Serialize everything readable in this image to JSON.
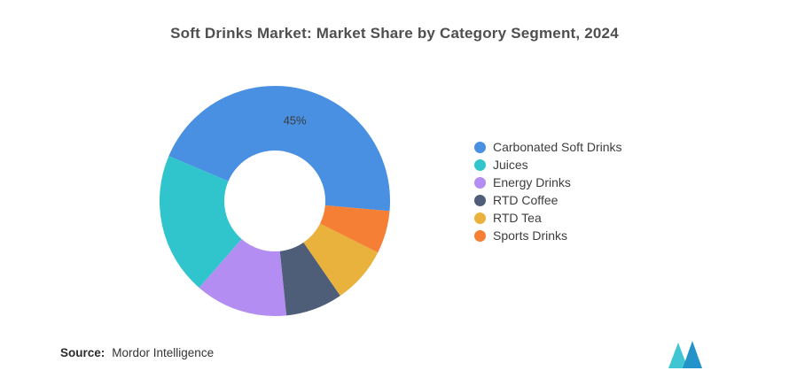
{
  "title": "Soft Drinks Market: Market Share by Category Segment, 2024",
  "source": {
    "label": "Source:",
    "value": "Mordor Intelligence"
  },
  "logo": {
    "name": "mordor-intelligence-logo",
    "teal_color": "#3fc6d2",
    "blue_color": "#2493c9"
  },
  "chart_data": {
    "type": "pie",
    "donut": true,
    "title": "Soft Drinks Market: Market Share by Category Segment, 2024",
    "legend_position": "right",
    "direction": "counterclockwise",
    "start_angle_deg": -5,
    "categories": [
      "Carbonated Soft Drinks",
      "Juices",
      "Energy Drinks",
      "RTD Coffee",
      "RTD Tea",
      "Sports Drinks"
    ],
    "values": [
      45,
      20,
      13,
      8,
      8,
      6
    ],
    "colors": [
      "#4a90e2",
      "#30c5cd",
      "#b38df2",
      "#4e5d78",
      "#e9b23c",
      "#f47f35"
    ],
    "data_labels": [
      "45%",
      "",
      "",
      "",
      "",
      ""
    ],
    "label_text_color": "#3a3a3a"
  }
}
